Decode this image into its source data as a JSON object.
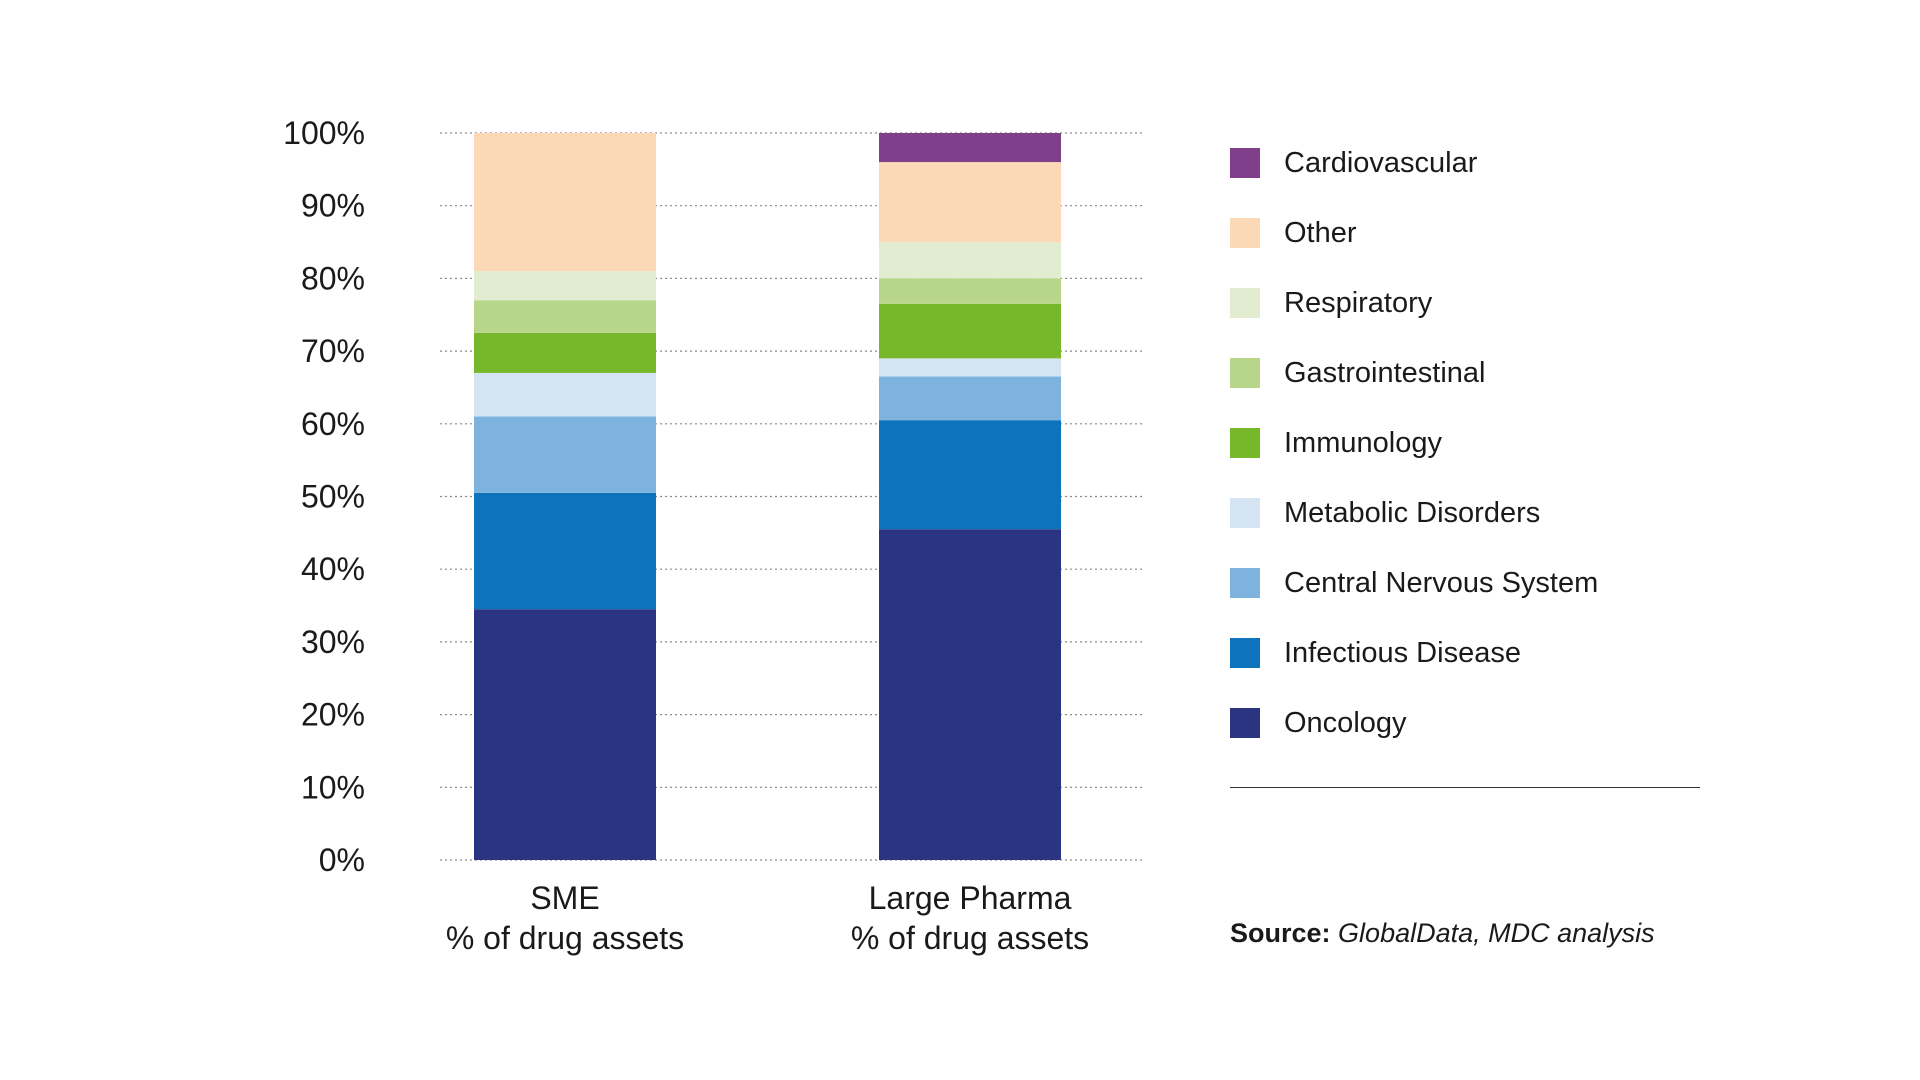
{
  "chart_data": {
    "type": "bar",
    "stacked": true,
    "categories": [
      [
        "SME",
        "% of drug assets"
      ],
      [
        "Large Pharma",
        "% of drug assets"
      ]
    ],
    "yticks": [
      "0%",
      "10%",
      "20%",
      "30%",
      "40%",
      "50%",
      "60%",
      "70%",
      "80%",
      "90%",
      "100%"
    ],
    "ylim": [
      0,
      100
    ],
    "grid": true,
    "legend_position": "right",
    "series": [
      {
        "name": "Oncology",
        "color": "#2b3481",
        "values": [
          34.5,
          45.5
        ]
      },
      {
        "name": "Infectious Disease",
        "color": "#0e73bd",
        "values": [
          16,
          15
        ]
      },
      {
        "name": "Central Nervous System",
        "color": "#7db3de",
        "values": [
          10.5,
          6
        ]
      },
      {
        "name": "Metabolic Disorders",
        "color": "#d4e4f2",
        "values": [
          6,
          2.5
        ]
      },
      {
        "name": "Immunology",
        "color": "#76b82a",
        "values": [
          5.5,
          7.5
        ]
      },
      {
        "name": "Gastrointestinal",
        "color": "#b8d68a",
        "values": [
          4.5,
          3.5
        ]
      },
      {
        "name": "Respiratory",
        "color": "#e1ecd1",
        "values": [
          4,
          5
        ]
      },
      {
        "name": "Other",
        "color": "#fbd9b6",
        "values": [
          19,
          11
        ]
      },
      {
        "name": "Cardiovascular",
        "color": "#7f3f8a",
        "values": [
          0,
          4
        ]
      }
    ],
    "legend_order": [
      "Cardiovascular",
      "Other",
      "Respiratory",
      "Gastrointestinal",
      "Immunology",
      "Metabolic Disorders",
      "Central Nervous System",
      "Infectious Disease",
      "Oncology"
    ]
  },
  "source": {
    "label": "Source:",
    "text": "GlobalData, MDC analysis"
  }
}
